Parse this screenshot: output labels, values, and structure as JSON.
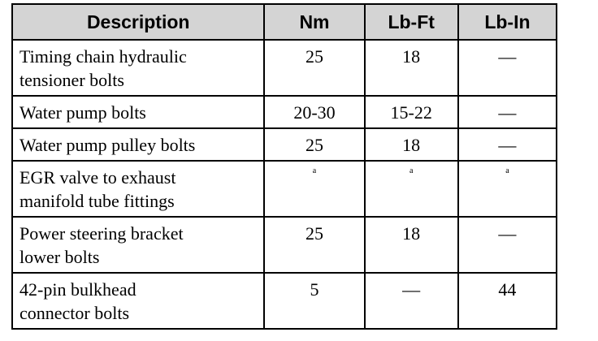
{
  "table": {
    "header": [
      "Description",
      "Nm",
      "Lb-Ft",
      "Lb-In"
    ],
    "rows": [
      [
        [
          "Timing chain hydraulic",
          "tensioner bolts"
        ],
        "25",
        "18",
        "—"
      ],
      [
        [
          "Water pump bolts"
        ],
        "20-30",
        "15-22",
        "—"
      ],
      [
        [
          "Water pump pulley bolts"
        ],
        "25",
        "18",
        "—"
      ],
      [
        [
          "EGR valve to exhaust",
          "manifold tube fittings"
        ],
        "a",
        "a",
        "a"
      ],
      [
        [
          "Power steering bracket",
          "lower bolts"
        ],
        "25",
        "18",
        "—"
      ],
      [
        [
          "42-pin bulkhead",
          "connector bolts"
        ],
        "5",
        "—",
        "44"
      ]
    ]
  }
}
